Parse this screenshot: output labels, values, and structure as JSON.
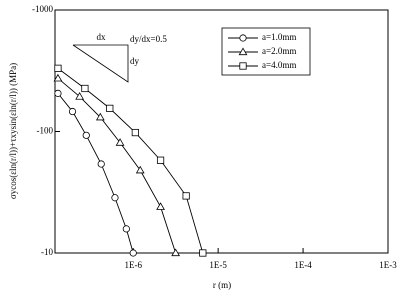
{
  "chart_data": {
    "type": "line",
    "x_label": "r (m)",
    "y_label": "σycos(εln(r/l))+τxysin(εln(r/l)) (MPa)",
    "annotations": [
      "dx",
      "dy",
      "dy/dx=0.5"
    ],
    "xscale": "log",
    "yscale": "log",
    "xlim": [
      1.2e-07,
      0.001
    ],
    "xticks": [
      {
        "value": 1e-06,
        "label": "1E-6"
      },
      {
        "value": 1e-05,
        "label": "1E-5"
      },
      {
        "value": 0.0001,
        "label": "1E-4"
      },
      {
        "value": 0.001,
        "label": "1E-3"
      }
    ],
    "ylim": [
      -10,
      -1000
    ],
    "yticks": [
      -10,
      -100,
      -1000
    ],
    "legend": "upper right",
    "series": [
      {
        "name": "a=1.0mm",
        "color": "#000000",
        "marker": "circle",
        "x": [
          1.3e-07,
          1.93e-07,
          2.8e-07,
          4.2e-07,
          6.1e-07,
          8.3e-07,
          1e-06
        ],
        "values": [
          -206,
          -146,
          -93,
          -54,
          -28.5,
          -15.8,
          -10
        ]
      },
      {
        "name": "a=2.0mm",
        "color": "#000000",
        "marker": "triangle",
        "x": [
          1.3e-07,
          2.34e-07,
          4.1e-07,
          7e-07,
          1.21e-06,
          2.1e-06,
          3.16e-06
        ],
        "values": [
          -274,
          -194,
          -131,
          -81,
          -48,
          -24,
          -10
        ]
      },
      {
        "name": "a=4.0mm",
        "color": "#000000",
        "marker": "square",
        "x": [
          1.3e-07,
          2.7e-07,
          5.3e-07,
          1.06e-06,
          2.1e-06,
          4.2e-06,
          6.6e-06
        ],
        "values": [
          -331,
          -226,
          -155,
          -98,
          -58,
          -29.5,
          -10
        ]
      }
    ]
  }
}
